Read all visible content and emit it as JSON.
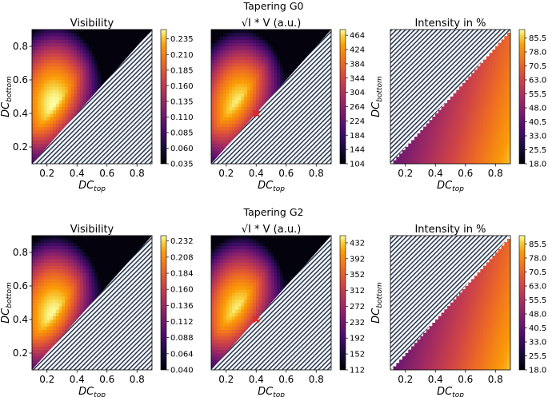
{
  "figure": {
    "colormap": "inferno",
    "hatch_color": "#2b3a55",
    "marker_color": "#e8261e",
    "row_titles": [
      "Tapering G0",
      "Tapering G2"
    ]
  },
  "chart_data": [
    {
      "type": "heatmap",
      "row": 0,
      "col": 0,
      "row_title": "Tapering G0",
      "title": "Visibility",
      "xlabel": "DC",
      "xlabel_sub": "top",
      "ylabel": "DC",
      "ylabel_sub": "bottom",
      "xlim": [
        0.1,
        0.9
      ],
      "ylim": [
        0.1,
        0.9
      ],
      "xticks": [
        "0.2",
        "0.4",
        "0.6",
        "0.8"
      ],
      "yticks": [
        "0.2",
        "0.4",
        "0.6",
        "0.8"
      ],
      "colorbar_range": [
        0.035,
        0.25
      ],
      "colorbar_ticks": [
        "0.035",
        "0.060",
        "0.085",
        "0.110",
        "0.135",
        "0.160",
        "0.185",
        "0.210",
        "0.235"
      ],
      "peak": {
        "x": 0.25,
        "y": 0.45,
        "value": 0.235
      },
      "masked_region": "DC_bottom < DC_top"
    },
    {
      "type": "heatmap",
      "row": 0,
      "col": 1,
      "row_title": "Tapering G0",
      "title_prefix": "√I",
      "title": " * V (a.u.)",
      "xlabel": "DC",
      "xlabel_sub": "top",
      "ylabel": "",
      "xlim": [
        0.1,
        0.9
      ],
      "ylim": [
        0.1,
        0.9
      ],
      "xticks": [
        "0.2",
        "0.4",
        "0.6",
        "0.8"
      ],
      "colorbar_range": [
        104,
        480
      ],
      "colorbar_ticks": [
        "104",
        "144",
        "184",
        "224",
        "264",
        "304",
        "344",
        "384",
        "424",
        "464"
      ],
      "peak": {
        "x": 0.3,
        "y": 0.42,
        "value": 464
      },
      "marker": {
        "x": 0.4,
        "y": 0.4,
        "symbol": "x"
      },
      "masked_region": "DC_bottom < DC_top"
    },
    {
      "type": "heatmap",
      "row": 0,
      "col": 2,
      "row_title": "Tapering G0",
      "title": "Intensity in %",
      "xlabel": "DC",
      "xlabel_sub": "top",
      "ylabel": "DC",
      "ylabel_sub": "bottom",
      "xlim": [
        0.1,
        0.9
      ],
      "ylim": [
        0.1,
        0.9
      ],
      "xticks": [
        "0.2",
        "0.4",
        "0.6",
        "0.8"
      ],
      "colorbar_range": [
        18.0,
        90.0
      ],
      "colorbar_ticks": [
        "18.0",
        "25.5",
        "33.0",
        "40.5",
        "48.0",
        "55.5",
        "63.0",
        "70.5",
        "78.0",
        "85.5"
      ],
      "masked_region": "DC_bottom > DC_top"
    },
    {
      "type": "heatmap",
      "row": 1,
      "col": 0,
      "row_title": "Tapering G2",
      "title": "Visibility",
      "xlabel": "DC",
      "xlabel_sub": "top",
      "ylabel": "DC",
      "ylabel_sub": "bottom",
      "xlim": [
        0.1,
        0.9
      ],
      "ylim": [
        0.1,
        0.9
      ],
      "xticks": [
        "0.2",
        "0.4",
        "0.6",
        "0.8"
      ],
      "yticks": [
        "0.2",
        "0.4",
        "0.6",
        "0.8"
      ],
      "colorbar_range": [
        0.04,
        0.24
      ],
      "colorbar_ticks": [
        "0.040",
        "0.064",
        "0.088",
        "0.112",
        "0.136",
        "0.160",
        "0.184",
        "0.208",
        "0.232"
      ],
      "peak": {
        "x": 0.25,
        "y": 0.42,
        "value": 0.232
      },
      "masked_region": "DC_bottom < DC_top"
    },
    {
      "type": "heatmap",
      "row": 1,
      "col": 1,
      "row_title": "Tapering G2",
      "title_prefix": "√I",
      "title": " * V (a.u.)",
      "xlabel": "DC",
      "xlabel_sub": "top",
      "ylabel": "",
      "xlim": [
        0.1,
        0.9
      ],
      "ylim": [
        0.1,
        0.9
      ],
      "xticks": [
        "0.2",
        "0.4",
        "0.6",
        "0.8"
      ],
      "colorbar_range": [
        112,
        450
      ],
      "colorbar_ticks": [
        "112",
        "152",
        "192",
        "232",
        "272",
        "312",
        "352",
        "392",
        "432"
      ],
      "peak": {
        "x": 0.3,
        "y": 0.42,
        "value": 432
      },
      "marker": {
        "x": 0.4,
        "y": 0.4,
        "symbol": "x"
      },
      "masked_region": "DC_bottom < DC_top"
    },
    {
      "type": "heatmap",
      "row": 1,
      "col": 2,
      "row_title": "Tapering G2",
      "title": "Intensity in %",
      "xlabel": "DC",
      "xlabel_sub": "top",
      "ylabel": "DC",
      "ylabel_sub": "bottom",
      "xlim": [
        0.1,
        0.9
      ],
      "ylim": [
        0.1,
        0.9
      ],
      "xticks": [
        "0.2",
        "0.4",
        "0.6",
        "0.8"
      ],
      "colorbar_range": [
        18.0,
        90.0
      ],
      "colorbar_ticks": [
        "18.0",
        "25.5",
        "33.0",
        "40.5",
        "48.0",
        "55.5",
        "63.0",
        "70.5",
        "78.0",
        "85.5"
      ],
      "masked_region": "DC_bottom > DC_top"
    }
  ]
}
